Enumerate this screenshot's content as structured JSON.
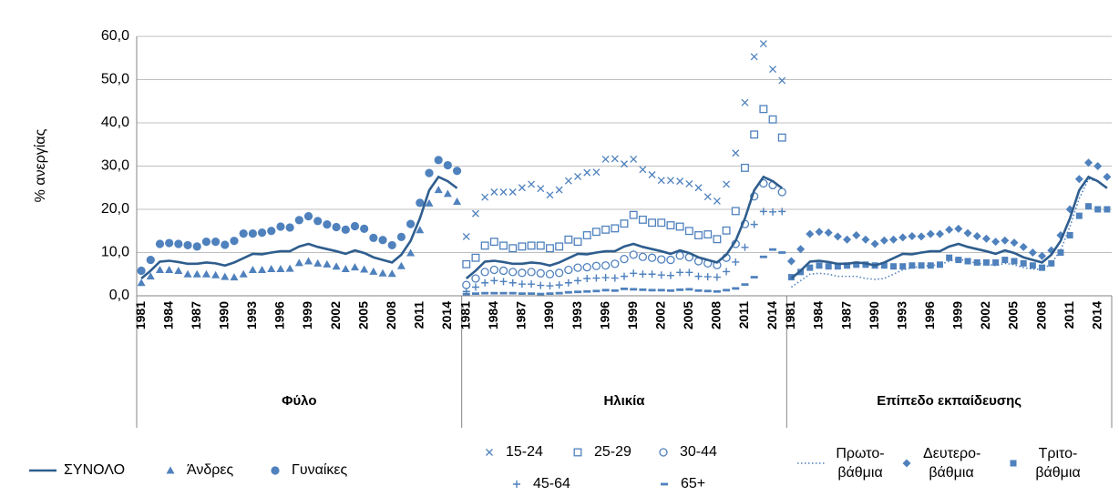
{
  "chart_data": {
    "type": "line",
    "y_label": "% ανεργίας",
    "ylim": [
      0,
      60
    ],
    "yticks": [
      {
        "value": 0,
        "label": "0,0"
      },
      {
        "value": 10,
        "label": "10,0"
      },
      {
        "value": 20,
        "label": "20,0"
      },
      {
        "value": 30,
        "label": "30,0"
      },
      {
        "value": 40,
        "label": "40,0"
      },
      {
        "value": 50,
        "label": "50,0"
      },
      {
        "value": 60,
        "label": "60,0"
      }
    ],
    "grid": true,
    "categories": [
      "1981",
      null,
      null,
      "1984",
      null,
      null,
      "1987",
      null,
      null,
      "1990",
      null,
      null,
      "1993",
      null,
      null,
      "1996",
      null,
      null,
      "1999",
      null,
      null,
      "2002",
      null,
      null,
      "2005",
      null,
      null,
      "2008",
      null,
      null,
      "2011",
      null,
      null,
      "2014",
      null
    ],
    "total": {
      "name": "ΣΥΝΟΛΟ",
      "color": "#2e5d8e",
      "line": "solid",
      "values": [
        4.0,
        5.8,
        7.9,
        8.1,
        7.8,
        7.4,
        7.4,
        7.7,
        7.5,
        7.0,
        7.7,
        8.7,
        9.7,
        9.6,
        10.0,
        10.3,
        10.3,
        11.4,
        12.0,
        11.3,
        10.8,
        10.3,
        9.7,
        10.5,
        9.9,
        8.9,
        8.3,
        7.7,
        9.5,
        12.7,
        17.9,
        24.4,
        27.5,
        26.5,
        24.9
      ]
    },
    "panels": [
      {
        "label": "Φύλο",
        "series": [
          {
            "name": "Άνδρες",
            "color": "#4f81bd",
            "marker": "triangle",
            "values": [
              3.0,
              4.5,
              6.0,
              6.0,
              5.8,
              5.0,
              5.0,
              5.0,
              4.8,
              4.4,
              4.3,
              5.0,
              6.0,
              6.0,
              6.2,
              6.2,
              6.3,
              7.6,
              8.0,
              7.5,
              7.3,
              6.8,
              6.2,
              6.6,
              6.1,
              5.6,
              5.2,
              5.1,
              6.9,
              9.9,
              15.2,
              21.4,
              24.5,
              23.6,
              21.8
            ]
          },
          {
            "name": "Γυναίκες",
            "color": "#4f81bd",
            "marker": "circle",
            "values": [
              5.8,
              8.3,
              12.0,
              12.2,
              12.0,
              11.7,
              11.4,
              12.5,
              12.5,
              11.8,
              12.7,
              14.4,
              14.4,
              14.6,
              15.0,
              16.0,
              15.8,
              17.5,
              18.4,
              17.3,
              16.5,
              15.9,
              15.3,
              16.1,
              15.5,
              13.4,
              12.9,
              11.7,
              13.6,
              16.6,
              21.5,
              28.4,
              31.4,
              30.2,
              28.9
            ]
          }
        ]
      },
      {
        "label": "Ηλικία",
        "series": [
          {
            "name": "15-24",
            "color": "#4f81bd",
            "marker": "x",
            "values": [
              13.7,
              19.0,
              22.8,
              24.0,
              24.0,
              24.0,
              25.0,
              25.8,
              24.8,
              23.3,
              24.5,
              26.6,
              27.6,
              28.5,
              28.6,
              31.6,
              31.7,
              30.5,
              31.6,
              29.2,
              28.0,
              26.7,
              26.7,
              26.5,
              25.9,
              25.0,
              22.9,
              21.9,
              25.8,
              33.0,
              44.7,
              55.3,
              58.3,
              52.4,
              49.8
            ]
          },
          {
            "name": "25-29",
            "color": "#4f81bd",
            "marker": "square-open",
            "values": [
              7.3,
              8.8,
              11.6,
              12.5,
              11.6,
              11.0,
              11.4,
              11.6,
              11.6,
              11.0,
              11.4,
              13.0,
              12.5,
              14.0,
              14.8,
              15.3,
              15.6,
              16.7,
              18.7,
              17.6,
              16.9,
              16.9,
              16.3,
              16.0,
              15.0,
              14.0,
              14.2,
              13.1,
              15.1,
              19.6,
              29.6,
              37.3,
              43.2,
              40.8,
              36.6
            ]
          },
          {
            "name": "30-44",
            "color": "#4f81bd",
            "marker": "circle-open",
            "values": [
              2.5,
              4.0,
              5.5,
              6.0,
              5.8,
              5.5,
              5.3,
              5.5,
              5.2,
              5.0,
              5.3,
              6.0,
              6.5,
              6.6,
              6.9,
              7.0,
              7.4,
              8.5,
              9.5,
              9.0,
              8.8,
              8.4,
              8.3,
              9.3,
              8.9,
              8.0,
              7.5,
              7.1,
              8.8,
              12.0,
              16.6,
              23.0,
              26.0,
              25.6,
              24.0
            ]
          },
          {
            "name": "45-64",
            "color": "#4f81bd",
            "marker": "plus",
            "values": [
              1.0,
              2.0,
              3.0,
              3.5,
              3.3,
              3.0,
              2.7,
              2.7,
              2.4,
              2.3,
              2.5,
              3.0,
              3.5,
              4.0,
              4.1,
              4.2,
              4.1,
              4.5,
              5.2,
              5.0,
              5.0,
              4.8,
              4.7,
              5.4,
              5.4,
              4.5,
              4.4,
              4.3,
              5.6,
              7.8,
              11.2,
              16.5,
              19.5,
              19.4,
              19.5
            ]
          },
          {
            "name": "65+",
            "color": "#4f81bd",
            "marker": "dash",
            "values": [
              0.4,
              0.5,
              0.6,
              0.6,
              0.6,
              0.6,
              0.5,
              0.5,
              0.4,
              0.5,
              0.6,
              0.8,
              0.9,
              1.0,
              1.1,
              1.3,
              1.2,
              1.6,
              1.5,
              1.4,
              1.3,
              1.3,
              1.2,
              1.4,
              1.5,
              1.2,
              1.1,
              1.0,
              1.3,
              1.7,
              2.6,
              4.3,
              9.0,
              10.7,
              10.0
            ]
          }
        ]
      },
      {
        "label": "Επίπεδο εκπαίδευσης",
        "series": [
          {
            "name": "Πρωτο-βάθμια",
            "color": "#4f81bd",
            "line": "dotted",
            "values": [
              2.0,
              3.5,
              5.0,
              5.2,
              5.0,
              4.5,
              4.5,
              4.5,
              4.0,
              3.8,
              4.0,
              5.0,
              6.0,
              6.5,
              6.8,
              7.0,
              7.2,
              8.0,
              8.5,
              8.0,
              7.5,
              7.3,
              7.0,
              7.5,
              7.2,
              6.5,
              6.2,
              6.0,
              7.5,
              10.5,
              16.0,
              22.5,
              27.0,
              26.5,
              25.0
            ]
          },
          {
            "name": "Δευτερο-βάθμια",
            "color": "#4f81bd",
            "marker": "diamond",
            "values": [
              8.0,
              10.8,
              14.3,
              14.8,
              14.6,
              13.7,
              13.0,
              14.0,
              13.0,
              12.0,
              12.8,
              13.0,
              13.5,
              13.8,
              13.7,
              14.3,
              14.3,
              15.3,
              15.5,
              14.5,
              13.8,
              13.2,
              12.5,
              12.8,
              12.3,
              11.3,
              10.0,
              9.2,
              10.5,
              14.0,
              20.0,
              27.0,
              30.8,
              30.0,
              27.5
            ]
          },
          {
            "name": "Τριτο-βάθμια",
            "color": "#4f81bd",
            "marker": "square",
            "values": [
              4.3,
              5.5,
              6.5,
              7.0,
              6.8,
              6.8,
              7.0,
              7.2,
              7.2,
              7.0,
              7.0,
              6.8,
              6.8,
              7.0,
              7.0,
              7.0,
              7.2,
              8.8,
              8.3,
              8.0,
              7.7,
              7.7,
              7.7,
              8.3,
              8.0,
              7.5,
              7.0,
              6.5,
              7.5,
              10.0,
              14.0,
              18.5,
              20.7,
              20.0,
              20.0
            ]
          }
        ]
      }
    ]
  }
}
